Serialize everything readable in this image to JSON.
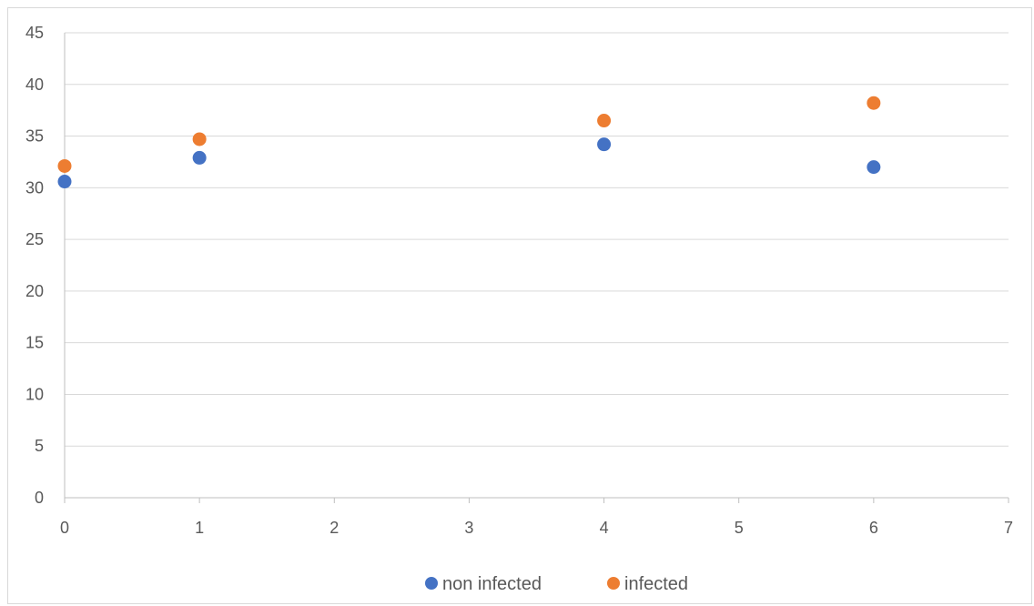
{
  "chart_data": {
    "type": "scatter",
    "title": "",
    "xlabel": "",
    "ylabel": "",
    "xlim": [
      0,
      7
    ],
    "ylim": [
      0,
      45
    ],
    "x_ticks": [
      0,
      1,
      2,
      3,
      4,
      5,
      6,
      7
    ],
    "y_ticks": [
      0,
      5,
      10,
      15,
      20,
      25,
      30,
      35,
      40,
      45
    ],
    "grid": "horizontal",
    "legend_position": "bottom-center",
    "series": [
      {
        "name": "non infected",
        "color": "#4472c4",
        "points": [
          {
            "x": 0,
            "y": 30.6
          },
          {
            "x": 1,
            "y": 32.9
          },
          {
            "x": 4,
            "y": 34.2
          },
          {
            "x": 6,
            "y": 32.0
          }
        ]
      },
      {
        "name": "infected",
        "color": "#ed7d31",
        "points": [
          {
            "x": 0,
            "y": 32.1
          },
          {
            "x": 1,
            "y": 34.7
          },
          {
            "x": 4,
            "y": 36.5
          },
          {
            "x": 6,
            "y": 38.2
          }
        ]
      }
    ]
  }
}
